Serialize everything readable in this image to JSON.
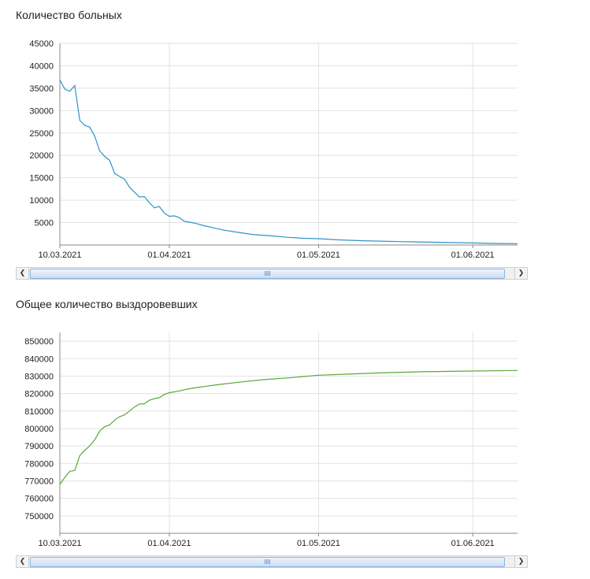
{
  "chart_data": [
    {
      "type": "line",
      "title": "Количество больных",
      "xlabel": "",
      "ylabel": "",
      "x_ticks": [
        "10.03.2021",
        "01.04.2021",
        "01.05.2021",
        "01.06.2021"
      ],
      "y_ticks": [
        5000,
        10000,
        15000,
        20000,
        25000,
        30000,
        35000,
        40000,
        45000
      ],
      "ylim": [
        0,
        45000
      ],
      "xlim": [
        "2021-03-10",
        "2021-06-10"
      ],
      "grid": true,
      "color": "#2f93c9",
      "series": [
        {
          "x": [
            "2021-03-10",
            "2021-03-11",
            "2021-03-12",
            "2021-03-13",
            "2021-03-14",
            "2021-03-15",
            "2021-03-16",
            "2021-03-17",
            "2021-03-18",
            "2021-03-19",
            "2021-03-20",
            "2021-03-21",
            "2021-03-22",
            "2021-03-23",
            "2021-03-24",
            "2021-03-25",
            "2021-03-26",
            "2021-03-27",
            "2021-03-28",
            "2021-03-29",
            "2021-03-30",
            "2021-03-31",
            "2021-04-01",
            "2021-04-02",
            "2021-04-03",
            "2021-04-04",
            "2021-04-05",
            "2021-04-06",
            "2021-04-08",
            "2021-04-10",
            "2021-04-12",
            "2021-04-15",
            "2021-04-18",
            "2021-04-21",
            "2021-04-25",
            "2021-04-28",
            "2021-05-01",
            "2021-05-05",
            "2021-05-10",
            "2021-05-15",
            "2021-05-20",
            "2021-05-25",
            "2021-06-01",
            "2021-06-05",
            "2021-06-10"
          ],
          "values": [
            36800,
            34800,
            34300,
            35600,
            27800,
            26700,
            26300,
            24300,
            21000,
            19800,
            18900,
            16000,
            15300,
            14700,
            12900,
            11800,
            10700,
            10800,
            9400,
            8300,
            8600,
            7100,
            6400,
            6500,
            6100,
            5300,
            5100,
            4900,
            4300,
            3800,
            3300,
            2800,
            2300,
            2100,
            1700,
            1500,
            1400,
            1150,
            950,
            800,
            700,
            600,
            450,
            350,
            300
          ]
        }
      ]
    },
    {
      "type": "line",
      "title": "Общее количество выздоровевших",
      "xlabel": "",
      "ylabel": "",
      "x_ticks": [
        "10.03.2021",
        "01.04.2021",
        "01.05.2021",
        "01.06.2021"
      ],
      "y_ticks": [
        750000,
        760000,
        770000,
        780000,
        790000,
        800000,
        810000,
        820000,
        830000,
        840000,
        850000
      ],
      "ylim": [
        740000,
        855000
      ],
      "xlim": [
        "2021-03-10",
        "2021-06-10"
      ],
      "grid": true,
      "color": "#5aa83a",
      "series": [
        {
          "x": [
            "2021-03-10",
            "2021-03-11",
            "2021-03-12",
            "2021-03-13",
            "2021-03-14",
            "2021-03-15",
            "2021-03-16",
            "2021-03-17",
            "2021-03-18",
            "2021-03-19",
            "2021-03-20",
            "2021-03-21",
            "2021-03-22",
            "2021-03-23",
            "2021-03-24",
            "2021-03-25",
            "2021-03-26",
            "2021-03-27",
            "2021-03-28",
            "2021-03-29",
            "2021-03-30",
            "2021-03-31",
            "2021-04-01",
            "2021-04-03",
            "2021-04-05",
            "2021-04-08",
            "2021-04-11",
            "2021-04-15",
            "2021-04-20",
            "2021-04-25",
            "2021-05-01",
            "2021-05-08",
            "2021-05-15",
            "2021-05-22",
            "2021-06-01",
            "2021-06-10"
          ],
          "values": [
            768000,
            772000,
            775500,
            776000,
            784500,
            787500,
            790000,
            793500,
            798500,
            801000,
            802000,
            804800,
            806800,
            807800,
            810000,
            812300,
            814000,
            814200,
            816200,
            817100,
            817600,
            819500,
            820500,
            821500,
            822800,
            824000,
            825200,
            826500,
            828000,
            829000,
            830500,
            831300,
            832000,
            832500,
            832900,
            833200
          ]
        }
      ]
    }
  ]
}
